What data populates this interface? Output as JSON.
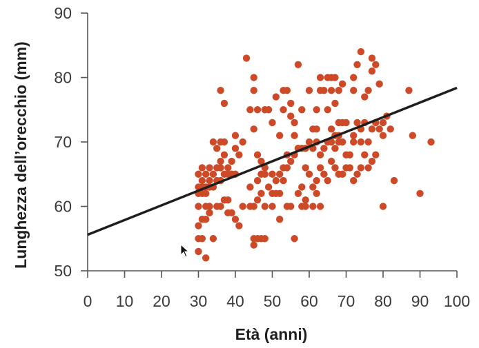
{
  "chart_data": {
    "type": "scatter",
    "title": "",
    "xlabel": "Età (anni)",
    "ylabel": "Lunghezza dell’orecchio (mm)",
    "xlim": [
      0,
      100
    ],
    "ylim": [
      50,
      90
    ],
    "x_ticks": [
      0,
      10,
      20,
      30,
      40,
      50,
      60,
      70,
      80,
      90,
      100
    ],
    "y_ticks": [
      50,
      60,
      70,
      80,
      90
    ],
    "grid": false,
    "colors": {
      "points": "#cc4a27",
      "trendline": "#1e1e1e",
      "axes": "#555555"
    },
    "trendline": {
      "x": [
        0,
        100
      ],
      "y": [
        55.6,
        78.4
      ]
    },
    "points": [
      [
        30,
        53
      ],
      [
        32,
        52
      ],
      [
        30,
        55
      ],
      [
        31,
        55
      ],
      [
        34,
        55
      ],
      [
        30,
        57
      ],
      [
        31,
        58
      ],
      [
        32,
        58
      ],
      [
        33,
        59
      ],
      [
        30,
        60
      ],
      [
        32,
        60
      ],
      [
        33,
        60
      ],
      [
        35,
        60
      ],
      [
        36,
        60
      ],
      [
        37,
        61
      ],
      [
        38,
        61
      ],
      [
        38,
        59
      ],
      [
        39,
        59
      ],
      [
        40,
        58
      ],
      [
        41,
        57
      ],
      [
        30,
        62
      ],
      [
        31,
        62
      ],
      [
        32,
        62
      ],
      [
        30,
        63
      ],
      [
        31,
        63
      ],
      [
        32,
        63
      ],
      [
        33,
        63
      ],
      [
        34,
        63
      ],
      [
        31,
        64
      ],
      [
        33,
        64
      ],
      [
        35,
        64
      ],
      [
        36,
        64
      ],
      [
        32,
        65
      ],
      [
        34,
        65
      ],
      [
        30,
        65
      ],
      [
        31,
        66
      ],
      [
        33,
        66
      ],
      [
        35,
        66
      ],
      [
        36,
        66
      ],
      [
        37,
        65
      ],
      [
        38,
        65
      ],
      [
        39,
        65
      ],
      [
        40,
        65
      ],
      [
        36,
        67
      ],
      [
        37,
        68
      ],
      [
        35,
        69
      ],
      [
        34,
        70
      ],
      [
        36,
        70
      ],
      [
        37,
        70
      ],
      [
        38,
        66
      ],
      [
        39,
        67
      ],
      [
        40,
        69
      ],
      [
        41,
        68
      ],
      [
        42,
        70
      ],
      [
        40,
        71
      ],
      [
        37,
        76
      ],
      [
        36,
        78
      ],
      [
        43,
        83
      ],
      [
        45,
        80
      ],
      [
        45,
        78
      ],
      [
        44,
        75
      ],
      [
        46,
        75
      ],
      [
        45,
        72
      ],
      [
        48,
        75
      ],
      [
        49,
        75
      ],
      [
        50,
        73
      ],
      [
        51,
        77
      ],
      [
        53,
        78
      ],
      [
        52,
        71
      ],
      [
        53,
        75
      ],
      [
        54,
        78
      ],
      [
        55,
        74
      ],
      [
        55,
        76
      ],
      [
        57,
        82
      ],
      [
        56,
        73
      ],
      [
        58,
        75
      ],
      [
        56,
        71
      ],
      [
        57,
        69
      ],
      [
        58,
        69
      ],
      [
        59,
        69
      ],
      [
        42,
        60
      ],
      [
        44,
        60
      ],
      [
        45,
        60
      ],
      [
        46,
        61
      ],
      [
        47,
        62
      ],
      [
        44,
        63
      ],
      [
        46,
        64
      ],
      [
        47,
        65
      ],
      [
        48,
        65
      ],
      [
        46,
        68
      ],
      [
        47,
        67
      ],
      [
        48,
        66
      ],
      [
        50,
        65
      ],
      [
        49,
        63
      ],
      [
        50,
        62
      ],
      [
        51,
        62
      ],
      [
        52,
        62
      ],
      [
        51,
        64
      ],
      [
        53,
        64
      ],
      [
        52,
        65
      ],
      [
        53,
        66
      ],
      [
        54,
        66
      ],
      [
        54,
        68
      ],
      [
        55,
        67
      ],
      [
        56,
        68
      ],
      [
        57,
        69
      ],
      [
        45,
        55
      ],
      [
        46,
        55
      ],
      [
        47,
        55
      ],
      [
        48,
        55
      ],
      [
        45,
        54
      ],
      [
        48,
        60
      ],
      [
        50,
        60
      ],
      [
        52,
        58
      ],
      [
        54,
        60
      ],
      [
        55,
        60
      ],
      [
        56,
        55
      ],
      [
        58,
        60
      ],
      [
        59,
        60
      ],
      [
        57,
        62
      ],
      [
        58,
        63
      ],
      [
        59,
        61
      ],
      [
        60,
        78
      ],
      [
        61,
        72
      ],
      [
        62,
        72
      ],
      [
        62,
        75
      ],
      [
        63,
        78
      ],
      [
        63,
        80
      ],
      [
        64,
        78
      ],
      [
        65,
        80
      ],
      [
        66,
        78
      ],
      [
        66,
        80
      ],
      [
        67,
        80
      ],
      [
        68,
        78
      ],
      [
        69,
        79
      ],
      [
        67,
        76
      ],
      [
        65,
        75
      ],
      [
        68,
        73
      ],
      [
        69,
        73
      ],
      [
        70,
        73
      ],
      [
        66,
        72
      ],
      [
        67,
        71
      ],
      [
        68,
        70
      ],
      [
        60,
        70
      ],
      [
        61,
        69
      ],
      [
        62,
        70
      ],
      [
        63,
        68
      ],
      [
        64,
        69
      ],
      [
        65,
        70
      ],
      [
        66,
        70
      ],
      [
        67,
        69
      ],
      [
        68,
        71
      ],
      [
        69,
        70
      ],
      [
        70,
        68
      ],
      [
        71,
        68
      ],
      [
        72,
        70
      ],
      [
        71,
        66
      ],
      [
        70,
        66
      ],
      [
        69,
        65
      ],
      [
        68,
        65
      ],
      [
        67,
        66
      ],
      [
        66,
        67
      ],
      [
        65,
        64
      ],
      [
        64,
        65
      ],
      [
        63,
        66
      ],
      [
        62,
        64
      ],
      [
        61,
        63
      ],
      [
        60,
        65
      ],
      [
        59,
        66
      ],
      [
        61,
        60
      ],
      [
        62,
        62
      ],
      [
        63,
        60
      ],
      [
        72,
        80
      ],
      [
        72,
        78
      ],
      [
        73,
        82
      ],
      [
        74,
        84
      ],
      [
        75,
        77
      ],
      [
        76,
        78
      ],
      [
        77,
        81
      ],
      [
        78,
        82
      ],
      [
        79,
        79
      ],
      [
        77,
        83
      ],
      [
        75,
        73
      ],
      [
        74,
        72
      ],
      [
        73,
        73
      ],
      [
        72,
        71
      ],
      [
        74,
        70
      ],
      [
        76,
        70
      ],
      [
        77,
        72
      ],
      [
        78,
        73
      ],
      [
        79,
        72
      ],
      [
        80,
        73
      ],
      [
        81,
        74
      ],
      [
        80,
        71
      ],
      [
        82,
        72
      ],
      [
        78,
        68
      ],
      [
        77,
        67
      ],
      [
        76,
        66
      ],
      [
        75,
        68
      ],
      [
        74,
        66
      ],
      [
        73,
        65
      ],
      [
        72,
        64
      ],
      [
        80,
        60
      ],
      [
        83,
        64
      ],
      [
        87,
        78
      ],
      [
        88,
        71
      ],
      [
        90,
        62
      ],
      [
        93,
        70
      ]
    ]
  }
}
